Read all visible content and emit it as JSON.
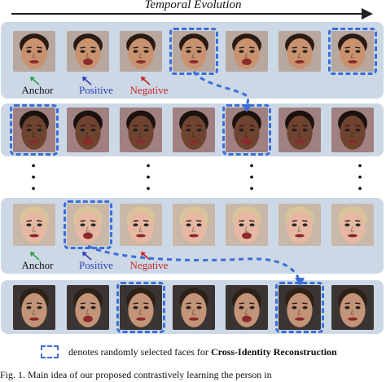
{
  "header": {
    "title": "Temporal Evolution"
  },
  "rows": [
    {
      "skin": "#c9926f",
      "hair": "#2a1a14",
      "bg": "#b7a79e",
      "selected": [
        3,
        6
      ]
    },
    {
      "skin": "#6e4330",
      "hair": "#1b1210",
      "bg": "#a08080",
      "selected": [
        0,
        4
      ]
    },
    {
      "skin": "#e6b8a2",
      "hair": "#d8c49a",
      "bg": "#c9b8a8",
      "selected": [
        1
      ]
    },
    {
      "skin": "#c39478",
      "hair": "#2d2118",
      "bg": "#3a3532",
      "selected": [
        2,
        5
      ]
    }
  ],
  "labels_top": {
    "anchor": "Anchor",
    "positive": "Positive",
    "negative": "Negative"
  },
  "labels_bottom": {
    "anchor": "Anchor",
    "positive": "Positive",
    "negative": "Negative"
  },
  "colors": {
    "anchor_arrow": "#2fa04a",
    "positive": "#2a40b8",
    "negative": "#c62828",
    "selection": "#3a6fd8",
    "panel": "#cdd8e6"
  },
  "legend": {
    "text_prefix": "denotes randomly selected faces for ",
    "text_bold": "Cross-Identity Reconstruction"
  },
  "caption": {
    "text": "Fig. 1.  Main idea of our proposed contrastively learning the person in"
  }
}
